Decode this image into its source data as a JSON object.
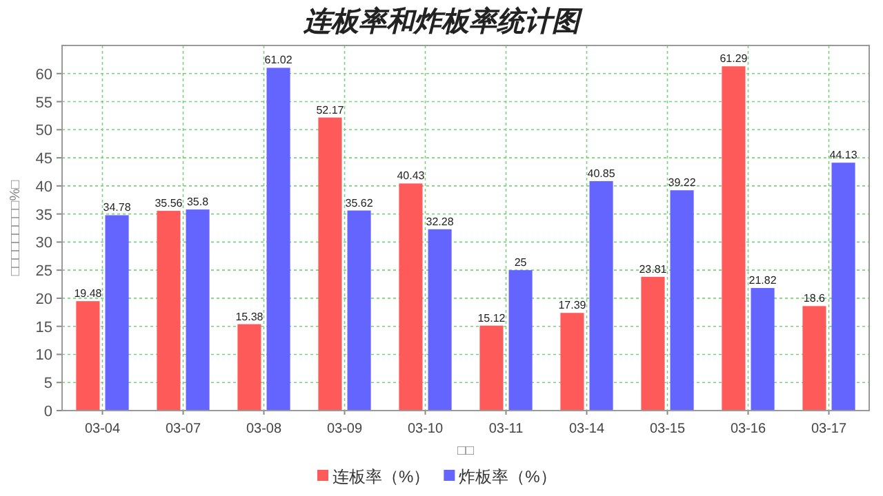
{
  "chart_data": {
    "type": "bar",
    "title": "连板率和炸板率统计图",
    "xlabel": "□□",
    "ylabel": "□□□□□□□□□%□",
    "categories": [
      "03-04",
      "03-07",
      "03-08",
      "03-09",
      "03-10",
      "03-11",
      "03-14",
      "03-15",
      "03-16",
      "03-17"
    ],
    "series": [
      {
        "name": "连板率（%）",
        "color": "#ff5a5a",
        "values": [
          19.48,
          35.56,
          15.38,
          52.17,
          40.43,
          15.12,
          17.39,
          23.81,
          61.29,
          18.6
        ]
      },
      {
        "name": "炸板率（%）",
        "color": "#6464ff",
        "values": [
          34.78,
          35.8,
          61.02,
          35.62,
          32.28,
          25,
          40.85,
          39.22,
          21.82,
          44.13
        ]
      }
    ],
    "ylim": [
      0,
      65
    ],
    "yticks": [
      0,
      5,
      10,
      15,
      20,
      25,
      30,
      35,
      40,
      45,
      50,
      55,
      60
    ],
    "grid": true,
    "legend": "bottom",
    "data_labels": true
  }
}
